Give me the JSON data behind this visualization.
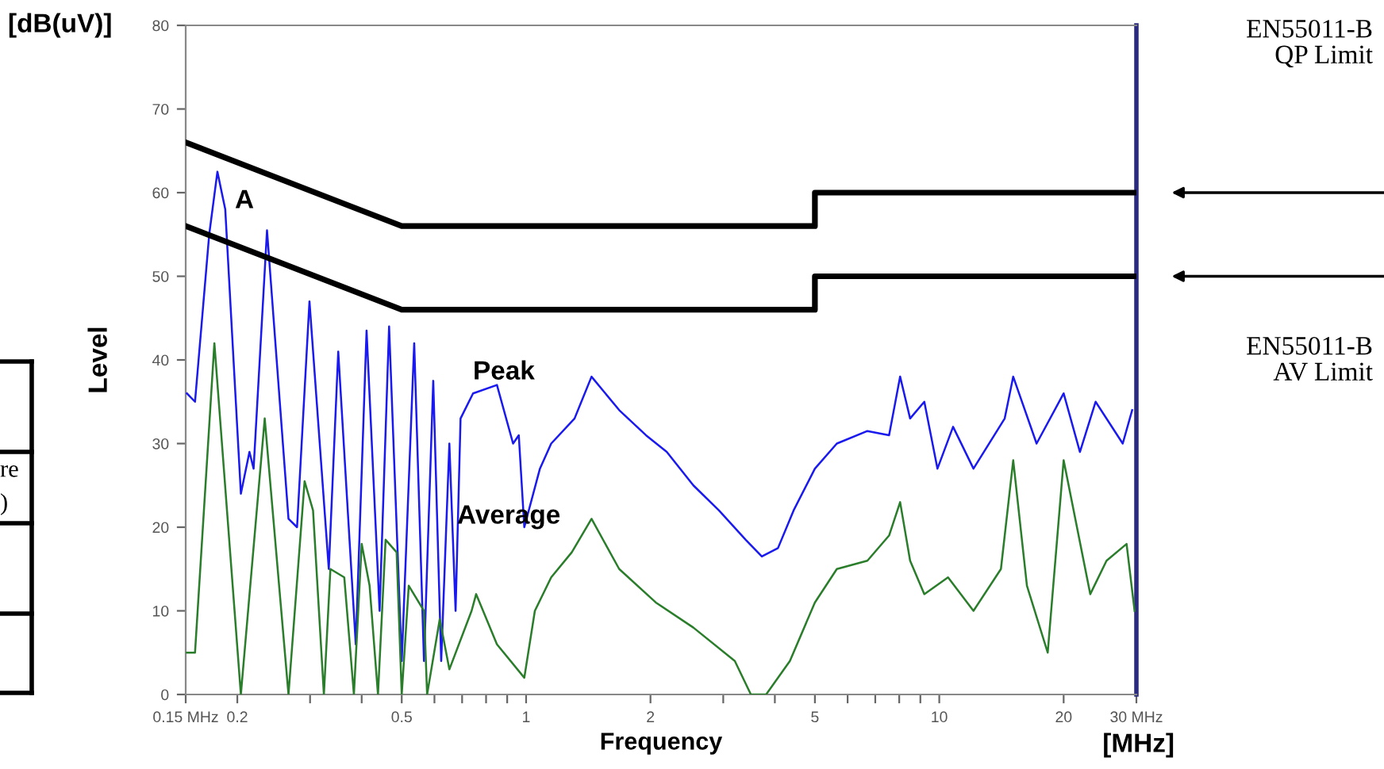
{
  "chart_data": {
    "type": "line",
    "xlabel": "Frequency",
    "ylabel": "Level",
    "log": "x",
    "grid": false,
    "marker": "none",
    "line_style": "solid",
    "xlim": [
      0.15,
      30
    ],
    "ylim": [
      0,
      80
    ],
    "xticks": [
      {
        "value": 0.15,
        "label": "0.15 MHz"
      },
      0.2,
      {
        "value": 0.3,
        "label": null
      },
      {
        "value": 0.4,
        "label": null
      },
      0.5,
      {
        "value": 0.6,
        "label": null
      },
      {
        "value": 0.7,
        "label": null
      },
      {
        "value": 0.8,
        "label": null
      },
      {
        "value": 0.9,
        "label": null
      },
      1,
      2,
      {
        "value": 3,
        "label": null
      },
      {
        "value": 4,
        "label": null
      },
      5,
      {
        "value": 6,
        "label": null
      },
      {
        "value": 7,
        "label": null
      },
      {
        "value": 8,
        "label": null
      },
      {
        "value": 9,
        "label": null
      },
      10,
      20,
      {
        "value": 30,
        "label": "30 MHz"
      }
    ],
    "yticks": [
      0,
      10,
      20,
      30,
      40,
      50,
      60,
      70,
      80
    ],
    "series": [
      {
        "color": "#1a1aee",
        "x": [
          0.151,
          0.158,
          0.171,
          0.179,
          0.187,
          0.204,
          0.214,
          0.219,
          0.236,
          0.266,
          0.279,
          0.299,
          0.333,
          0.351,
          0.387,
          0.411,
          0.442,
          0.466,
          0.5,
          0.536,
          0.566,
          0.596,
          0.623,
          0.652,
          0.675,
          0.694,
          0.744,
          0.85,
          0.93,
          0.96,
          0.99,
          1.08,
          1.15,
          1.31,
          1.44,
          1.68,
          1.95,
          2.19,
          2.54,
          2.93,
          3.4,
          3.72,
          4.07,
          4.44,
          5.0,
          5.65,
          6.7,
          7.56,
          8.04,
          8.5,
          9.2,
          9.9,
          10.8,
          12.1,
          14.4,
          15.1,
          17.2,
          20.0,
          21.9,
          23.9,
          27.8,
          29.3
        ],
        "values": [
          36,
          35,
          55,
          62.5,
          58,
          24,
          29,
          27,
          55.5,
          21,
          20,
          47,
          15,
          41,
          6,
          43.5,
          10,
          44,
          4,
          42,
          4,
          37.5,
          4,
          30,
          10,
          33,
          36,
          37,
          30,
          31,
          20,
          27,
          30,
          33,
          38,
          34,
          31,
          29,
          25,
          22,
          18.5,
          16.5,
          17.5,
          22,
          27,
          30,
          31.5,
          31,
          38,
          33,
          35,
          27,
          32,
          27,
          33,
          38,
          30,
          36,
          29,
          35,
          30,
          34
        ]
      },
      {
        "color": "#2a7d2a",
        "x": [
          0.151,
          0.158,
          0.176,
          0.204,
          0.233,
          0.266,
          0.291,
          0.305,
          0.324,
          0.336,
          0.363,
          0.383,
          0.4,
          0.418,
          0.438,
          0.457,
          0.486,
          0.5,
          0.52,
          0.566,
          0.576,
          0.618,
          0.652,
          0.738,
          0.757,
          0.85,
          0.99,
          1.05,
          1.15,
          1.29,
          1.44,
          1.68,
          2.06,
          2.54,
          3.2,
          3.5,
          3.81,
          4.35,
          5.0,
          5.65,
          6.7,
          7.56,
          8.04,
          8.5,
          9.2,
          10.5,
          12.1,
          14.1,
          15.1,
          16.3,
          18.3,
          20.0,
          23.2,
          25.4,
          28.4,
          29.7
        ],
        "values": [
          5,
          5,
          42,
          0,
          33,
          0,
          25.5,
          22,
          0,
          15,
          14,
          0,
          18,
          13,
          0,
          18.5,
          17,
          0,
          13,
          10,
          0,
          9,
          3,
          10,
          12,
          6,
          2,
          10,
          14,
          17,
          21,
          15,
          11,
          8,
          4,
          0,
          0,
          4,
          11,
          15,
          16,
          19,
          23,
          16,
          12,
          14,
          10,
          15,
          28,
          13,
          5,
          28,
          12,
          16,
          18,
          10
        ]
      },
      {
        "name": "EN55011-B\nQP Limit",
        "color": "#000000",
        "x": [
          0.15,
          0.5,
          5,
          5,
          30
        ],
        "values": [
          66,
          56,
          56,
          60,
          60
        ]
      },
      {
        "name": "EN55011-B\nAV Limit",
        "color": "#000000",
        "x": [
          0.15,
          0.5,
          5,
          5,
          30
        ],
        "values": [
          56,
          46,
          46,
          50,
          50
        ]
      }
    ],
    "annotations": [
      "A",
      "Peak",
      "Average",
      "[dB(uV)]",
      "[MHz]",
      "re",
      ")"
    ]
  }
}
